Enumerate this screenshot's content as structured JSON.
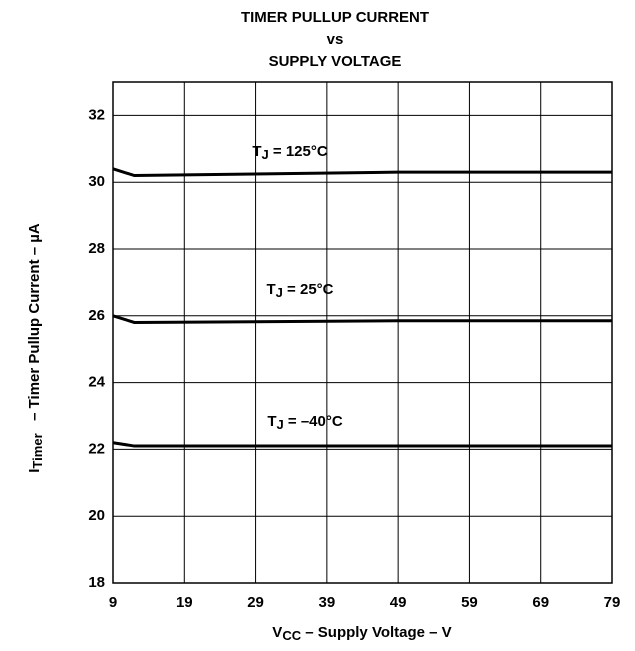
{
  "chart_data": {
    "type": "line",
    "title": [
      "TIMER PULLUP CURRENT",
      "vs",
      "SUPPLY VOLTAGE"
    ],
    "x_label": {
      "symbol": "V",
      "subscript": "CC",
      "text": " – Supply Voltage – V"
    },
    "y_label": {
      "symbol": "I",
      "subscript": "Timer",
      "text": "   – Timer Pullup Current – µA"
    },
    "x": [
      9,
      12,
      49,
      79
    ],
    "series": [
      {
        "color": "#000000",
        "values": [
          30.4,
          30.2,
          30.3,
          30.3
        ]
      },
      {
        "color": "#000000",
        "values": [
          26.0,
          25.8,
          25.85,
          25.85
        ]
      },
      {
        "color": "#000000",
        "values": [
          22.2,
          22.1,
          22.1,
          22.1
        ]
      }
    ],
    "annotations": [
      {
        "symbol": "T",
        "subscript": "J",
        "text": " = 125°C"
      },
      {
        "symbol": "T",
        "subscript": "J",
        "text": " = 25°C"
      },
      {
        "symbol": "T",
        "subscript": "J",
        "text": " = –40°C"
      }
    ],
    "xlim": [
      9,
      79
    ],
    "xticks": [
      9,
      19,
      29,
      39,
      49,
      59,
      69,
      79
    ],
    "ylim": [
      18,
      33
    ],
    "yticks": [
      18,
      20,
      22,
      24,
      26,
      28,
      30,
      32
    ],
    "grid": true
  }
}
